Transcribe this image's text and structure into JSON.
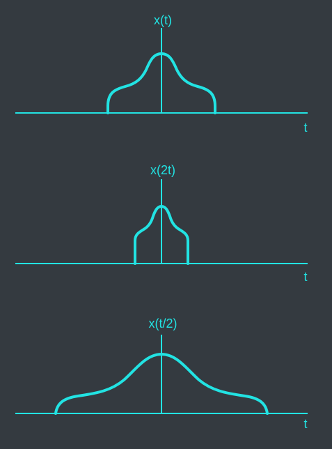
{
  "colors": {
    "background": "#343a40",
    "line": "#22e3e3"
  },
  "panels": [
    {
      "ylabel": "x(t)",
      "xlabel": "t",
      "time_scale": 1
    },
    {
      "ylabel": "x(2t)",
      "xlabel": "t",
      "time_scale": 2
    },
    {
      "ylabel": "x(t/2)",
      "xlabel": "t",
      "time_scale": 0.5
    }
  ]
}
